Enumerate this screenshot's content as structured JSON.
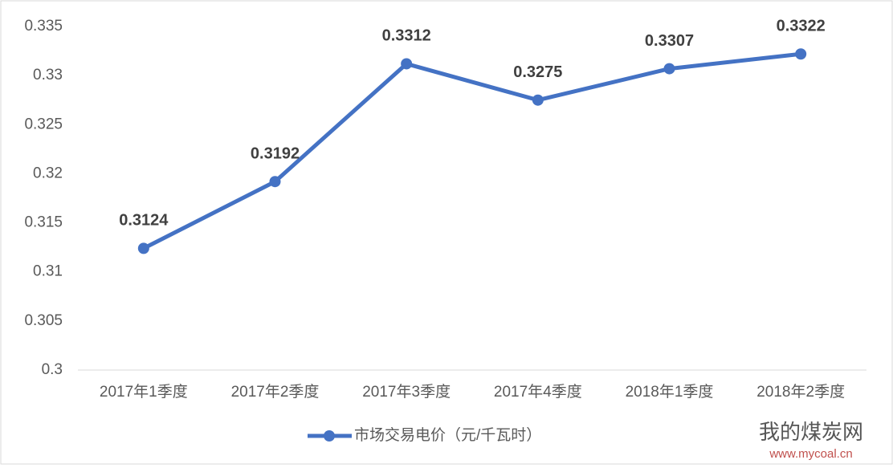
{
  "chart_data": {
    "type": "line",
    "categories": [
      "2017年1季度",
      "2017年2季度",
      "2017年3季度",
      "2017年4季度",
      "2018年1季度",
      "2018年2季度"
    ],
    "series": [
      {
        "name": "市场交易电价（元/千瓦时）",
        "color": "#4472c4",
        "values": [
          0.3124,
          0.3192,
          0.3312,
          0.3275,
          0.3307,
          0.3322
        ]
      }
    ],
    "ylim": [
      0.3,
      0.335
    ],
    "yticks": [
      0.3,
      0.305,
      0.31,
      0.315,
      0.32,
      0.325,
      0.33,
      0.335
    ],
    "grid": false,
    "data_labels": true,
    "legend": "bottom"
  },
  "watermark": {
    "name": "我的煤炭网",
    "url": "www.mycoal.cn"
  }
}
